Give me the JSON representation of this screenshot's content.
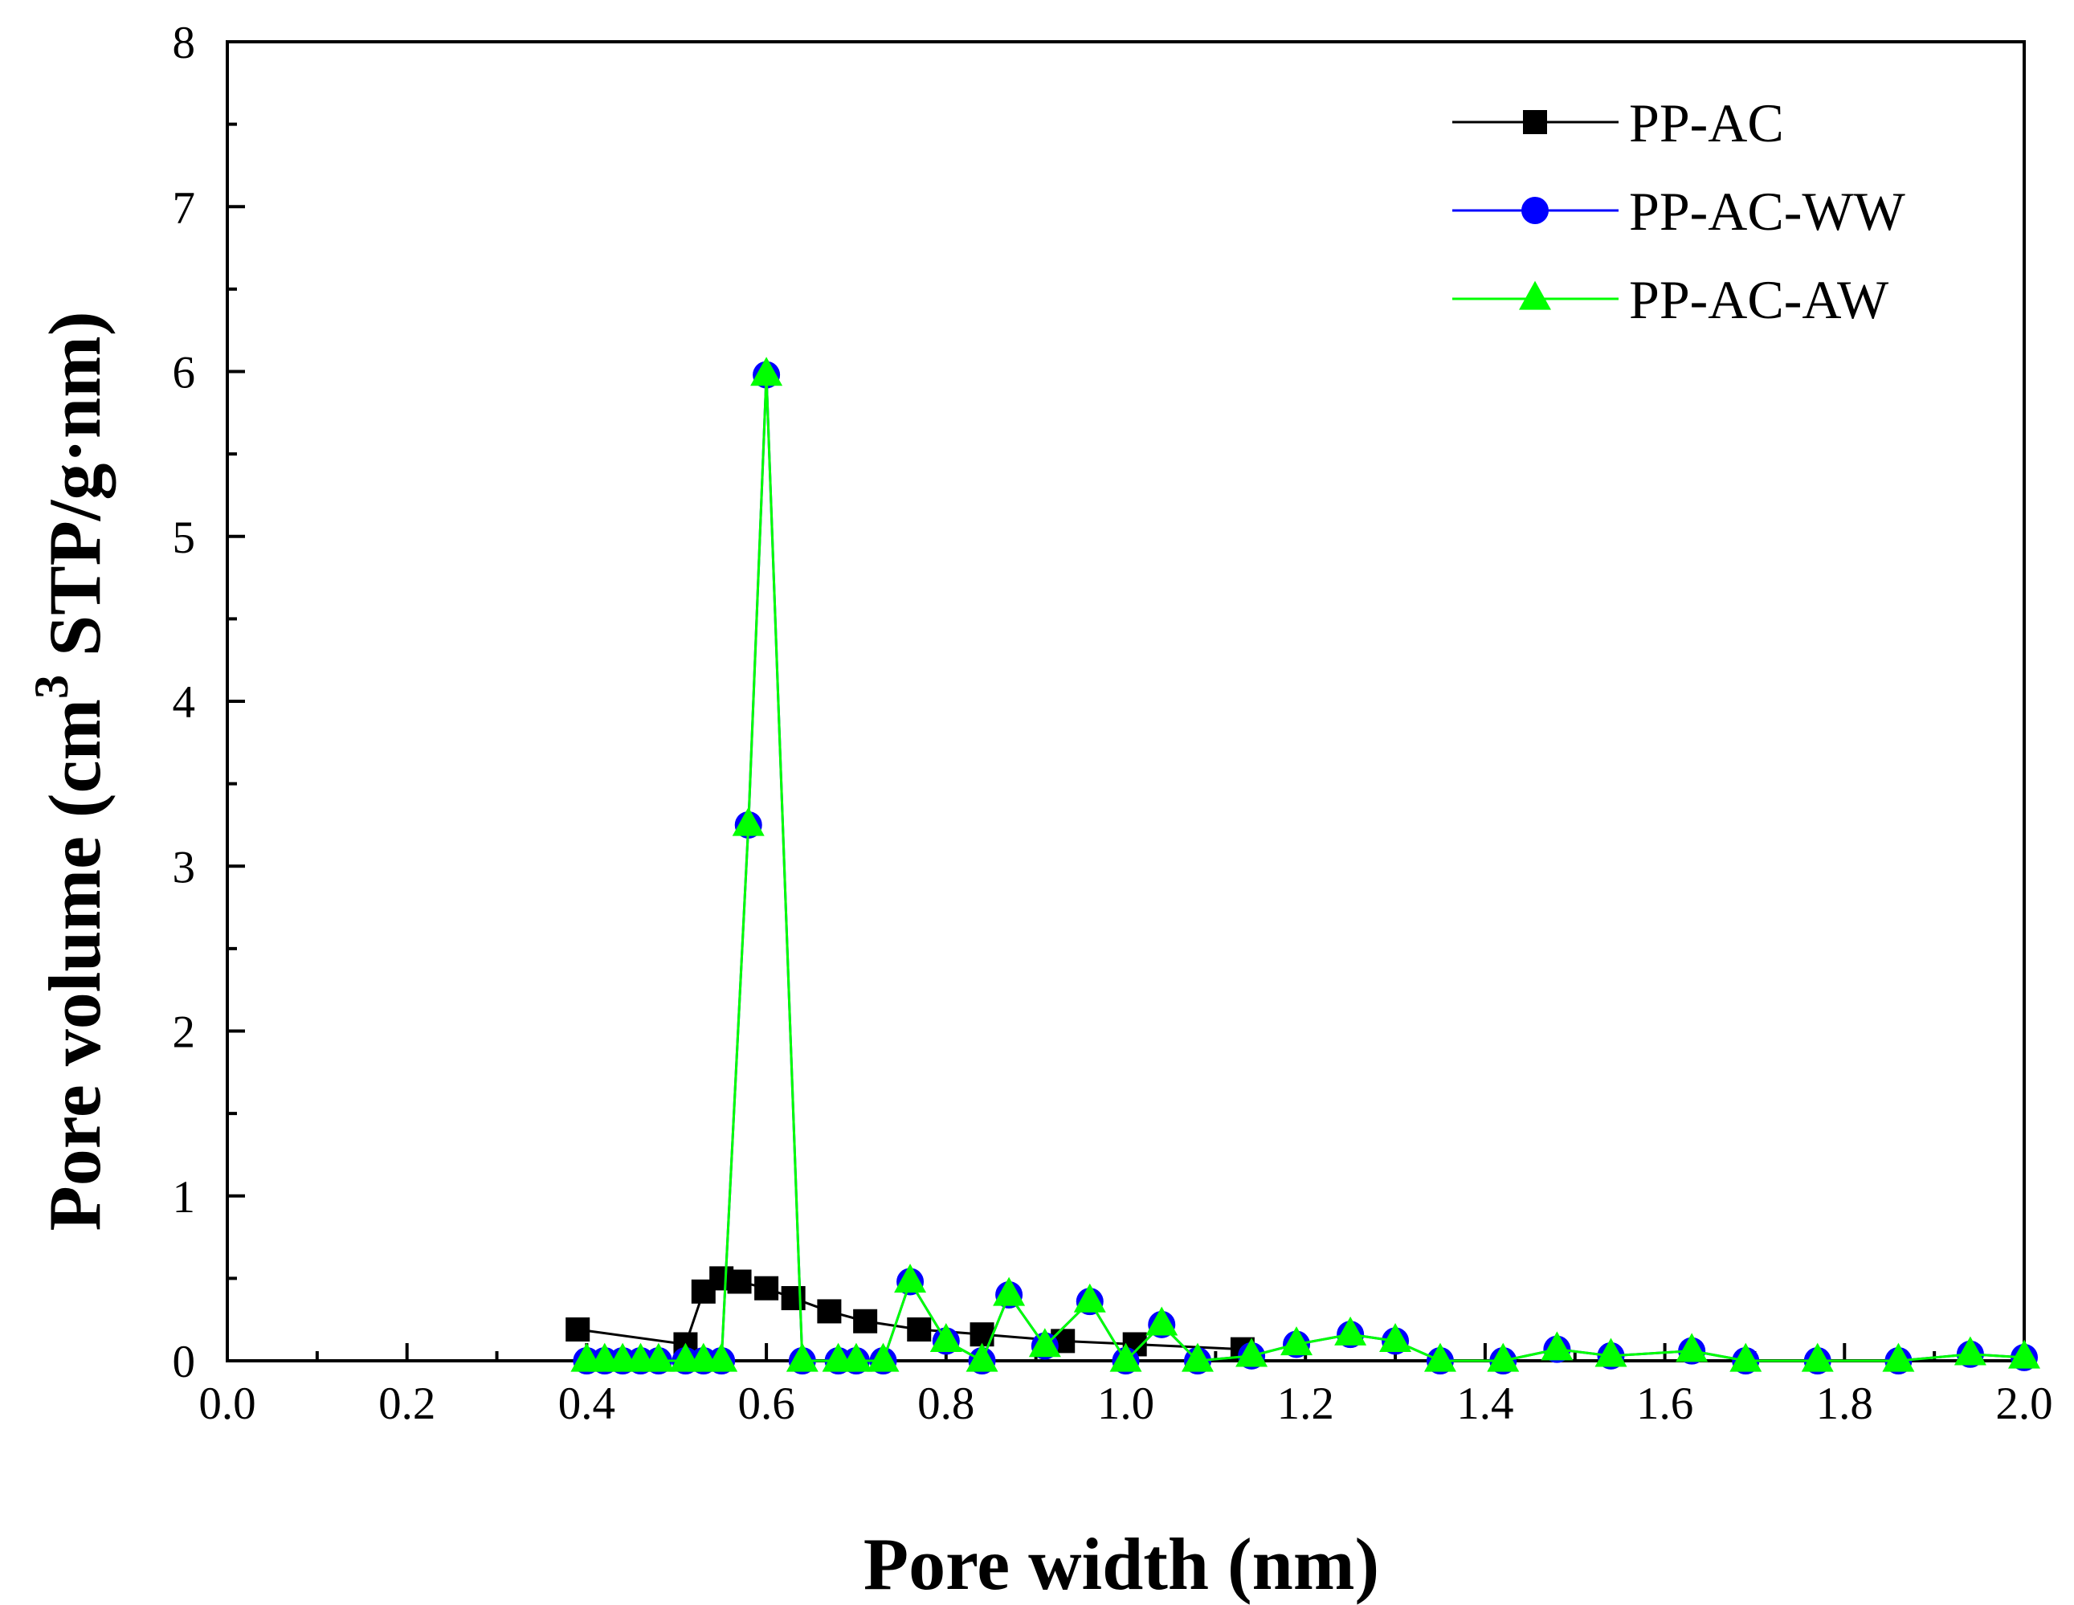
{
  "chart_data": {
    "type": "line",
    "title": "",
    "xlabel": "Pore width (nm)",
    "ylabel_main": "Pore volume (cm",
    "ylabel_sup": "3",
    "ylabel_rest": " STP/g·nm)",
    "xlim": [
      0.0,
      2.0
    ],
    "ylim": [
      0,
      8
    ],
    "xticks": [
      0.0,
      0.2,
      0.4,
      0.6,
      0.8,
      1.0,
      1.2,
      1.4,
      1.6,
      1.8,
      2.0
    ],
    "xtick_labels": [
      "0.0",
      "0.2",
      "0.4",
      "0.6",
      "0.8",
      "1.0",
      "1.2",
      "1.4",
      "1.6",
      "1.8",
      "2.0"
    ],
    "yticks": [
      0,
      1,
      2,
      3,
      4,
      5,
      6,
      7,
      8
    ],
    "ytick_labels": [
      "0",
      "1",
      "2",
      "3",
      "4",
      "5",
      "6",
      "7",
      "8"
    ],
    "grid": false,
    "legend_position": "top-right",
    "series": [
      {
        "name": "PP-AC",
        "color": "#000000",
        "marker": "square",
        "x": [
          0.39,
          0.51,
          0.53,
          0.55,
          0.57,
          0.6,
          0.63,
          0.67,
          0.71,
          0.77,
          0.84,
          0.93,
          1.01,
          1.13
        ],
        "y": [
          0.19,
          0.1,
          0.42,
          0.5,
          0.48,
          0.44,
          0.38,
          0.3,
          0.24,
          0.19,
          0.16,
          0.12,
          0.1,
          0.07
        ]
      },
      {
        "name": "PP-AC-WW",
        "color": "#0000ff",
        "marker": "circle",
        "x": [
          0.4,
          0.42,
          0.44,
          0.46,
          0.48,
          0.51,
          0.53,
          0.55,
          0.58,
          0.6,
          0.64,
          0.68,
          0.7,
          0.73,
          0.76,
          0.8,
          0.84,
          0.87,
          0.91,
          0.96,
          1.0,
          1.04,
          1.08,
          1.14,
          1.19,
          1.25,
          1.3,
          1.35,
          1.42,
          1.48,
          1.54,
          1.63,
          1.69,
          1.77,
          1.86,
          1.94,
          2.0
        ],
        "y": [
          0.0,
          0.0,
          0.0,
          0.0,
          0.0,
          0.0,
          0.0,
          0.0,
          3.25,
          5.98,
          0.0,
          0.0,
          0.0,
          0.0,
          0.48,
          0.12,
          0.0,
          0.4,
          0.09,
          0.36,
          0.0,
          0.22,
          0.0,
          0.03,
          0.1,
          0.16,
          0.12,
          0.0,
          0.0,
          0.07,
          0.03,
          0.06,
          0.0,
          0.0,
          0.0,
          0.04,
          0.02
        ]
      },
      {
        "name": "PP-AC-AW",
        "color": "#00ff00",
        "marker": "triangle",
        "x": [
          0.4,
          0.42,
          0.44,
          0.46,
          0.48,
          0.51,
          0.53,
          0.55,
          0.58,
          0.6,
          0.64,
          0.68,
          0.7,
          0.73,
          0.76,
          0.8,
          0.84,
          0.87,
          0.91,
          0.96,
          1.0,
          1.04,
          1.08,
          1.14,
          1.19,
          1.25,
          1.3,
          1.35,
          1.42,
          1.48,
          1.54,
          1.63,
          1.69,
          1.77,
          1.86,
          1.94,
          2.0
        ],
        "y": [
          0.0,
          0.0,
          0.0,
          0.0,
          0.0,
          0.0,
          0.0,
          0.0,
          3.25,
          5.98,
          0.0,
          0.0,
          0.0,
          0.0,
          0.48,
          0.12,
          0.0,
          0.4,
          0.09,
          0.36,
          0.0,
          0.22,
          0.0,
          0.03,
          0.1,
          0.16,
          0.12,
          0.0,
          0.0,
          0.07,
          0.03,
          0.06,
          0.0,
          0.0,
          0.0,
          0.04,
          0.02
        ]
      }
    ]
  }
}
